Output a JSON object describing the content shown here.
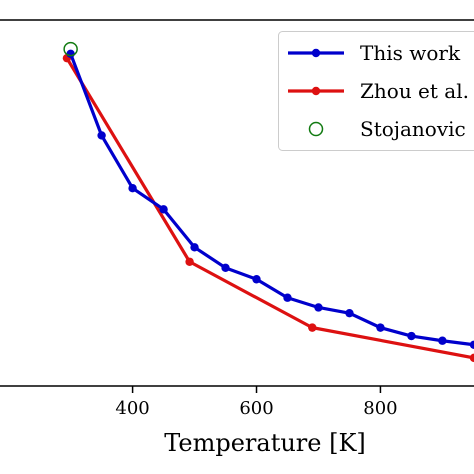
{
  "chart_data": {
    "type": "line",
    "xlabel": "Temperature [K]",
    "ylabel": "",
    "x_ticks": [
      400,
      600,
      800
    ],
    "xlim": [
      186,
      951
    ],
    "ylim": [
      0,
      1
    ],
    "legend_position": "top-right",
    "series": [
      {
        "name": "This work",
        "color": "#0000cc",
        "marker": "filled-circle",
        "x": [
          300,
          350,
          400,
          450,
          500,
          550,
          600,
          650,
          700,
          750,
          800,
          850,
          900,
          951
        ],
        "y": [
          0.953,
          0.71,
          0.553,
          0.49,
          0.377,
          0.316,
          0.282,
          0.227,
          0.198,
          0.181,
          0.138,
          0.113,
          0.099,
          0.087
        ]
      },
      {
        "name": "Zhou et al.",
        "color": "#dd1111",
        "marker": "filled-circle",
        "x": [
          294,
          492,
          690,
          951
        ],
        "y": [
          0.94,
          0.334,
          0.138,
          0.048
        ]
      },
      {
        "name": "Stojanovic",
        "color": "#117a11",
        "marker": "open-circle",
        "x": [
          300
        ],
        "y": [
          0.967
        ]
      }
    ]
  }
}
